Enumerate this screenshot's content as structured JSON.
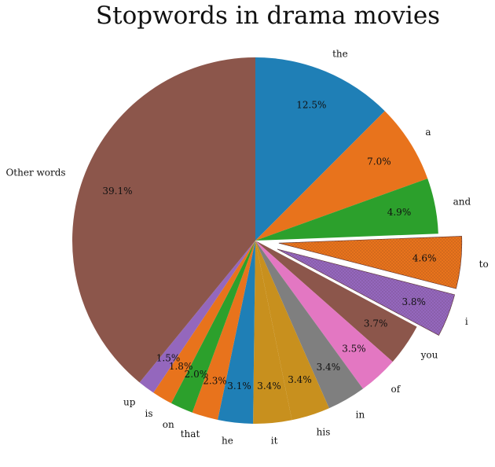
{
  "chart_data": {
    "type": "pie",
    "title": "Stopwords in drama movies",
    "start_angle_deg": 90,
    "direction": "clockwise",
    "slices": [
      {
        "label": "the",
        "value": 12.5,
        "pct_label": "12.5%",
        "color": "#1f7fb6",
        "explode": false
      },
      {
        "label": "a",
        "value": 7.0,
        "pct_label": "7.0%",
        "color": "#e8731c",
        "explode": false
      },
      {
        "label": "and",
        "value": 4.9,
        "pct_label": "4.9%",
        "color": "#2ca02c",
        "explode": false
      },
      {
        "label": "to",
        "value": 4.6,
        "pct_label": "4.6%",
        "color": "#e8731c",
        "explode": true
      },
      {
        "label": "i",
        "value": 3.8,
        "pct_label": "3.8%",
        "color": "#9467bd",
        "explode": true
      },
      {
        "label": "you",
        "value": 3.7,
        "pct_label": "3.7%",
        "color": "#8c564b",
        "explode": false
      },
      {
        "label": "of",
        "value": 3.5,
        "pct_label": "3.5%",
        "color": "#e377c2",
        "explode": false
      },
      {
        "label": "in",
        "value": 3.4,
        "pct_label": "3.4%",
        "color": "#7f7f7f",
        "explode": false
      },
      {
        "label": "his",
        "value": 3.4,
        "pct_label": "3.4%",
        "color": "#c8901e",
        "explode": false
      },
      {
        "label": "it",
        "value": 3.4,
        "pct_label": "3.4%",
        "color": "#c8901e",
        "explode": false
      },
      {
        "label": "he",
        "value": 3.1,
        "pct_label": "3.1%",
        "color": "#1f7fb6",
        "explode": false
      },
      {
        "label": "that",
        "value": 2.3,
        "pct_label": "2.3%",
        "color": "#e8731c",
        "explode": false
      },
      {
        "label": "on",
        "value": 2.0,
        "pct_label": "2.0%",
        "color": "#2ca02c",
        "explode": false
      },
      {
        "label": "is",
        "value": 1.8,
        "pct_label": "1.8%",
        "color": "#e8731c",
        "explode": false
      },
      {
        "label": "up",
        "value": 1.5,
        "pct_label": "1.5%",
        "color": "#9467bd",
        "explode": false
      },
      {
        "label": "Other words",
        "value": 39.1,
        "pct_label": "39.1%",
        "color": "#8c564b",
        "explode": false
      }
    ]
  }
}
